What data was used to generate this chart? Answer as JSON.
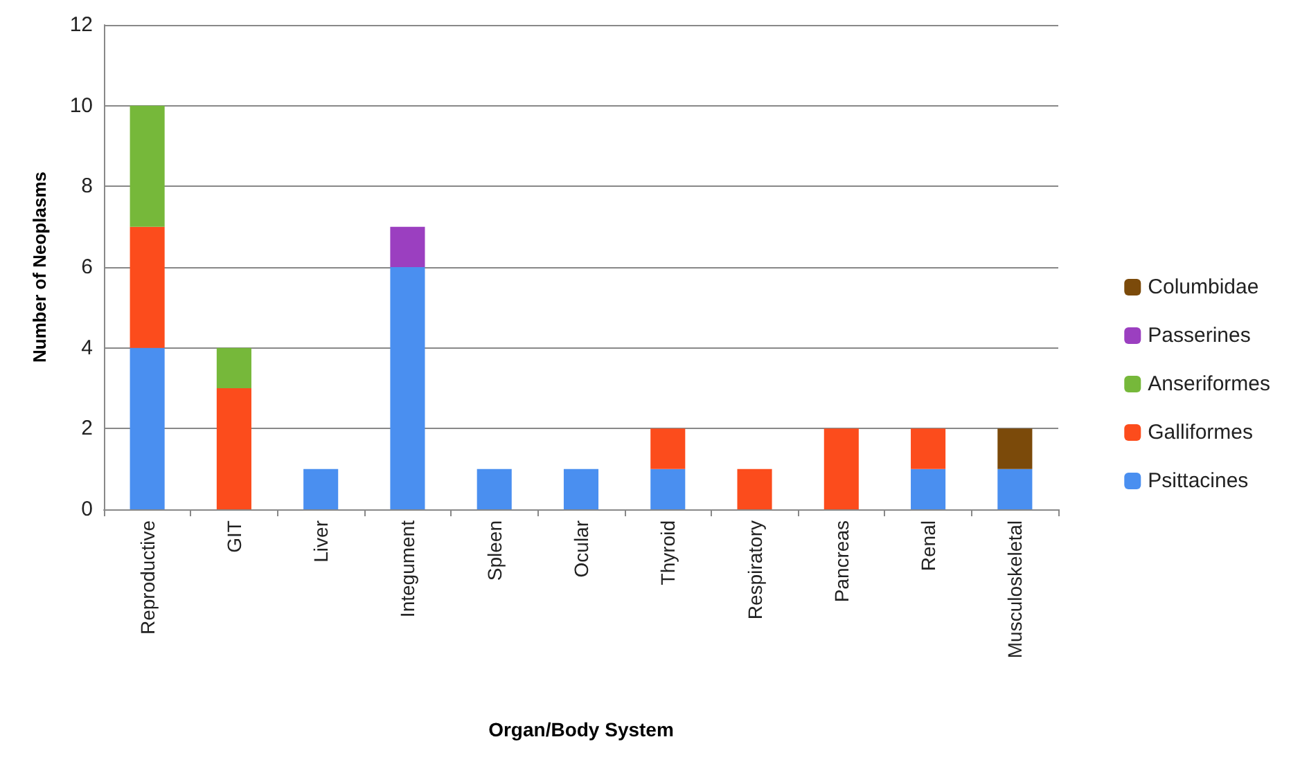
{
  "chart_data": {
    "type": "bar",
    "stacked": true,
    "xlabel": "Organ/Body System",
    "ylabel": "Number of Neoplasms",
    "categories": [
      "Reproductive",
      "GIT",
      "Liver",
      "Integument",
      "Spleen",
      "Ocular",
      "Thyroid",
      "Respiratory",
      "Pancreas",
      "Renal",
      "Musculoskeletal"
    ],
    "series": [
      {
        "name": "Psittacines",
        "color": "#4a8ff0",
        "values": [
          4,
          0,
          1,
          6,
          1,
          1,
          1,
          0,
          0,
          1,
          1
        ]
      },
      {
        "name": "Galliformes",
        "color": "#fc4c1c",
        "values": [
          3,
          3,
          0,
          0,
          0,
          0,
          1,
          1,
          2,
          1,
          0
        ]
      },
      {
        "name": "Anseriformes",
        "color": "#76b83a",
        "values": [
          3,
          1,
          0,
          0,
          0,
          0,
          0,
          0,
          0,
          0,
          0
        ]
      },
      {
        "name": "Passerines",
        "color": "#9b3fc0",
        "values": [
          0,
          0,
          0,
          1,
          0,
          0,
          0,
          0,
          0,
          0,
          0
        ]
      },
      {
        "name": "Columbidae",
        "color": "#7b4a0a",
        "values": [
          0,
          0,
          0,
          0,
          0,
          0,
          0,
          0,
          0,
          0,
          1
        ]
      }
    ],
    "ylim": [
      0,
      12
    ],
    "yticks": [
      0,
      2,
      4,
      6,
      8,
      10,
      12
    ],
    "grid": "y",
    "legend": "right"
  }
}
